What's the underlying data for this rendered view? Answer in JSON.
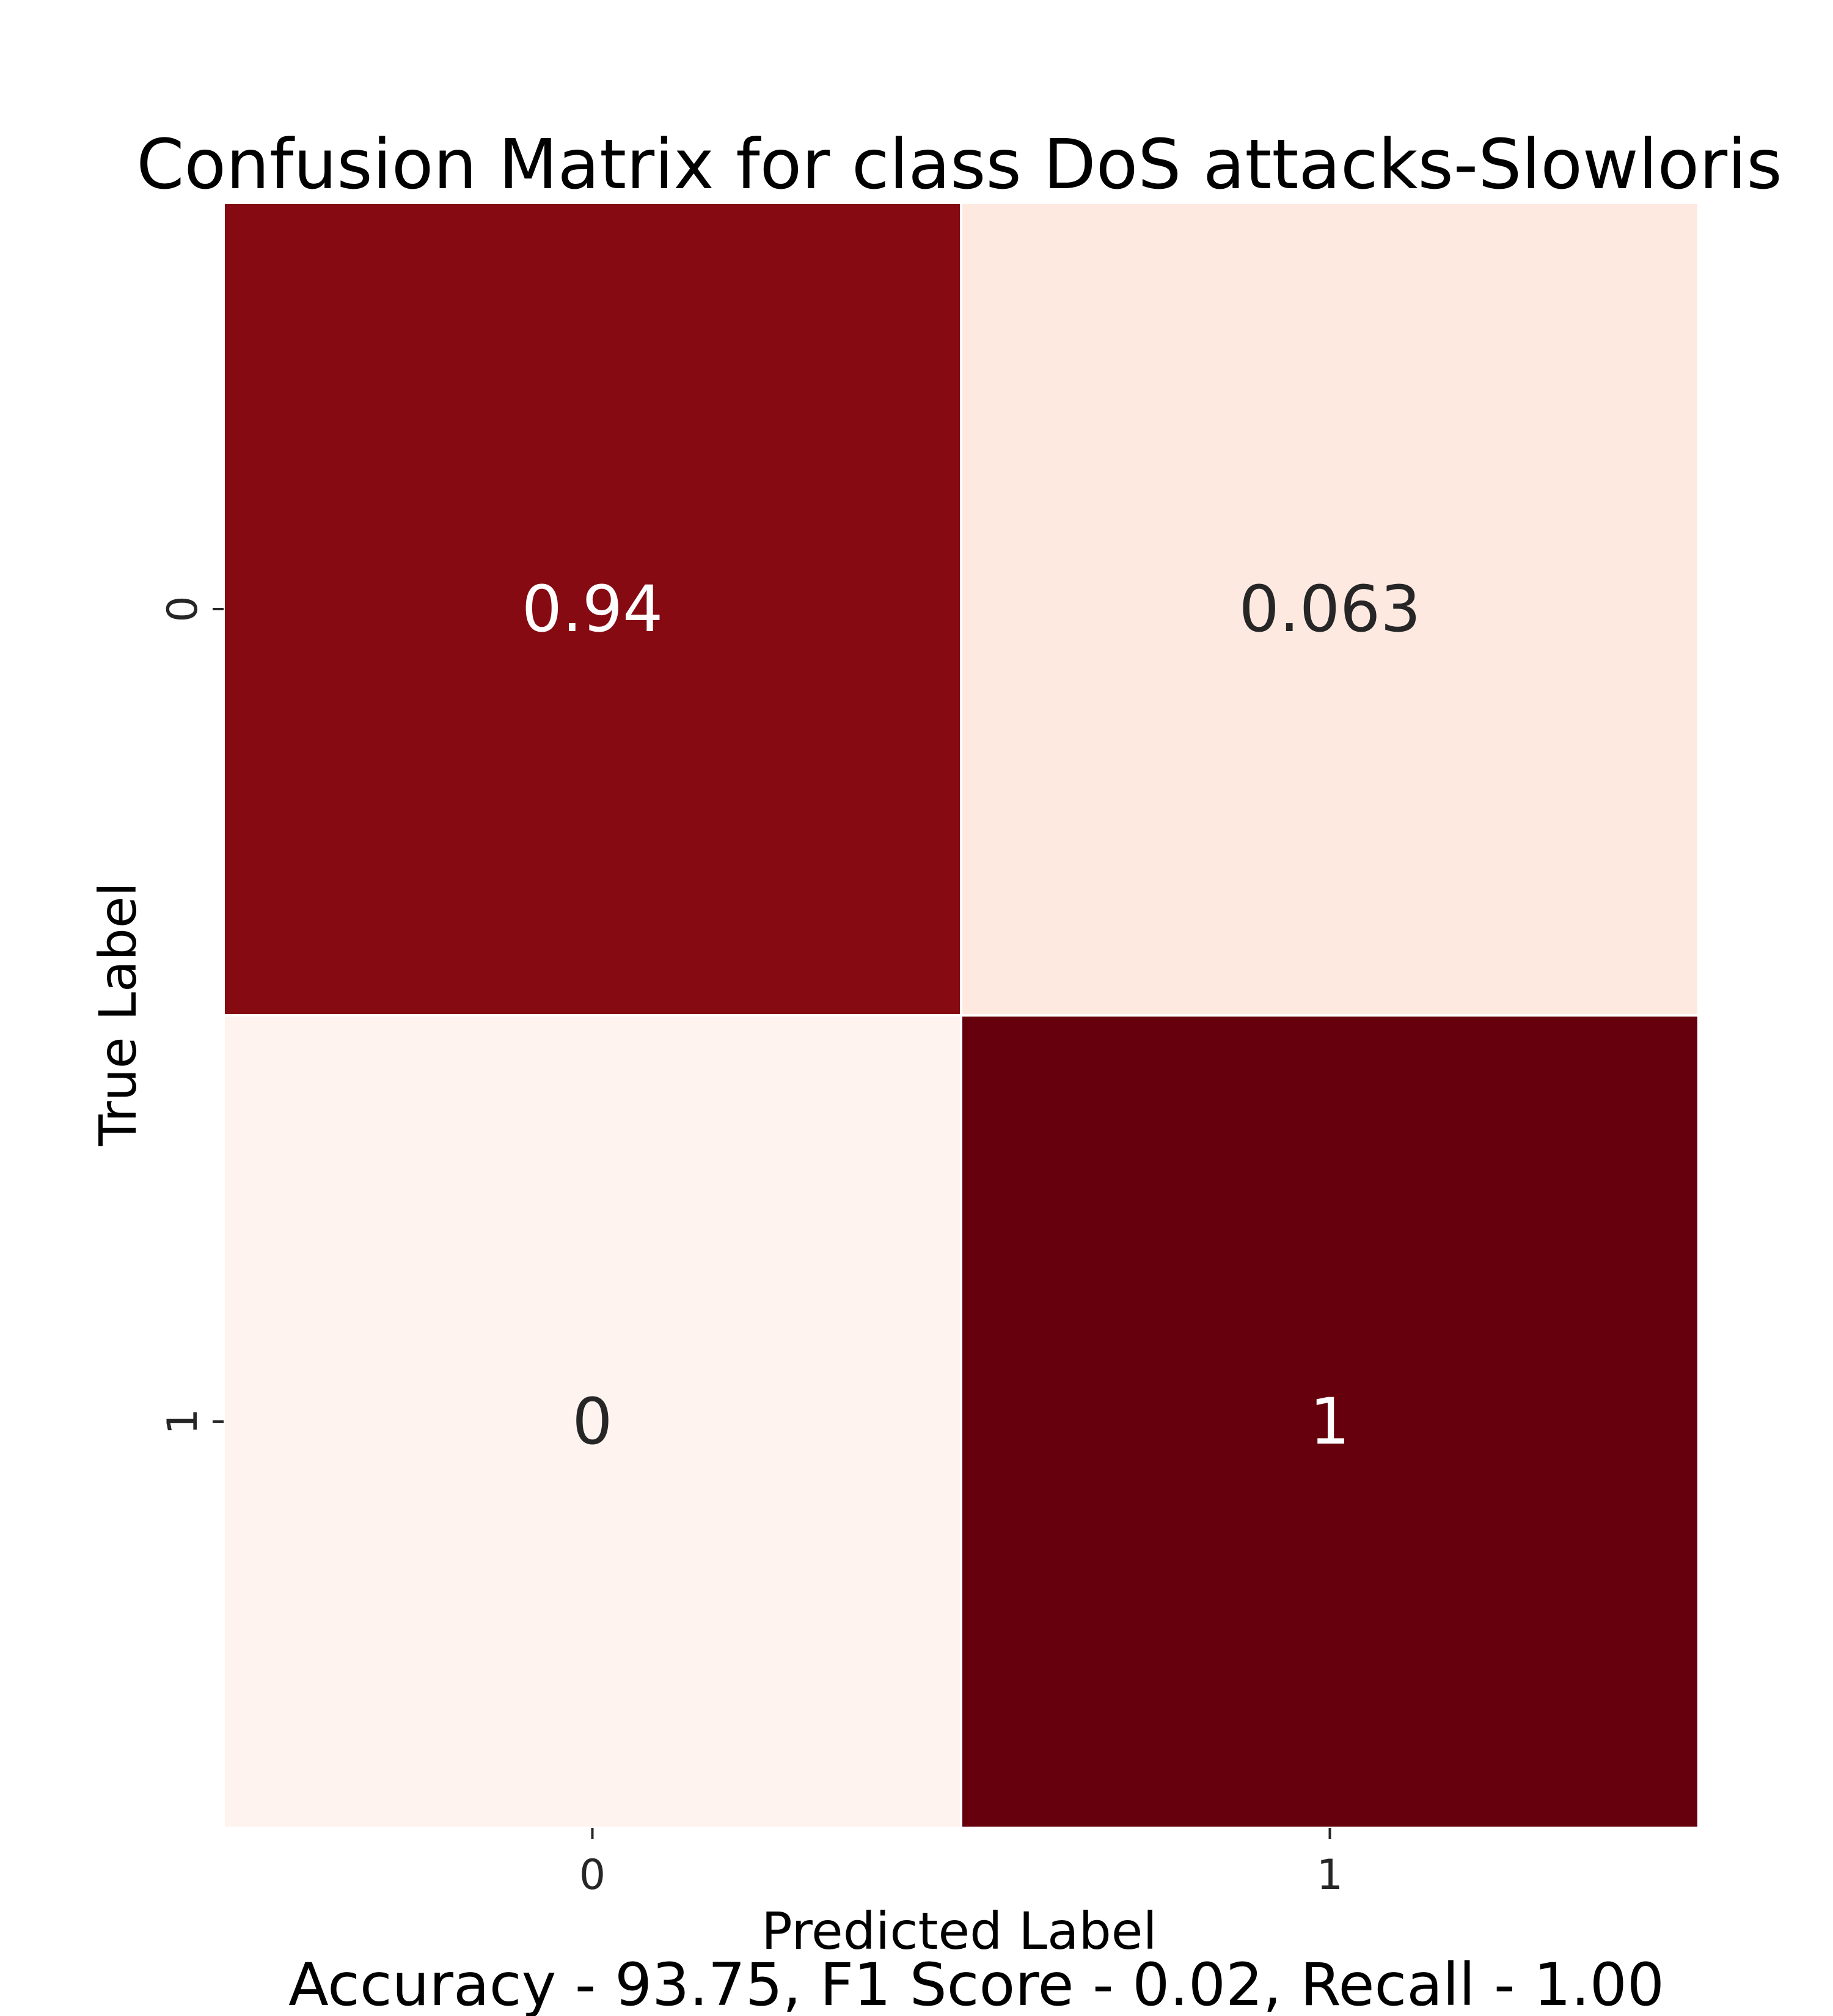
{
  "chart_data": {
    "type": "heatmap",
    "title": "Confusion Matrix for class DoS attacks-Slowloris",
    "xlabel": "Predicted Label",
    "ylabel": "True Label",
    "x_ticks": [
      "0",
      "1"
    ],
    "y_ticks": [
      "0",
      "1"
    ],
    "values": [
      [
        0.94,
        0.063
      ],
      [
        0,
        1
      ]
    ],
    "cell_labels": [
      [
        "0.94",
        "0.063"
      ],
      [
        "0",
        "1"
      ]
    ],
    "colormap": "Reds",
    "cell_colors": [
      [
        "#860A12",
        "#FEE9E1"
      ],
      [
        "#FEF3EF",
        "#67000D"
      ]
    ],
    "label_colors": [
      [
        "#FFFFFF",
        "#262626"
      ],
      [
        "#262626",
        "#FFFFFF"
      ]
    ],
    "colorbar": false
  },
  "footer": {
    "metrics_text": "Accuracy - 93.75, F1 Score - 0.02, Recall - 1.00"
  }
}
